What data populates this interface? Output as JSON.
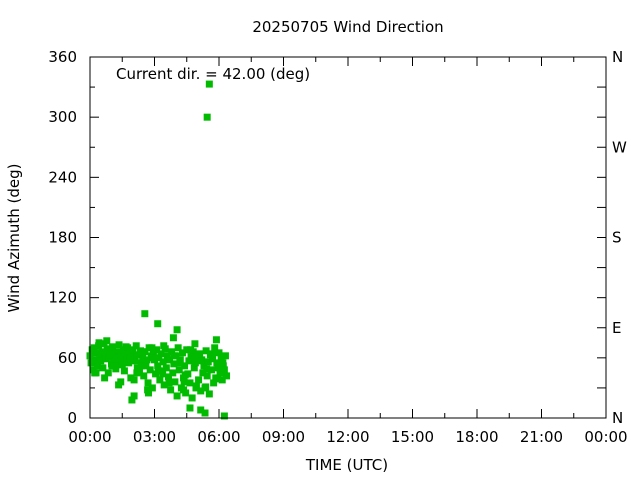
{
  "chart_data": {
    "type": "scatter",
    "title": "20250705 Wind Direction",
    "xlabel": "TIME (UTC)",
    "ylabel": "Wind Azimuth (deg)",
    "annotation": "Current dir. = 42.00 (deg)",
    "xlim": [
      0,
      24
    ],
    "ylim": [
      0,
      360
    ],
    "x_tick_values": [
      0,
      3,
      6,
      9,
      12,
      15,
      18,
      21,
      24
    ],
    "x_tick_labels": [
      "00:00",
      "03:00",
      "06:00",
      "09:00",
      "12:00",
      "15:00",
      "18:00",
      "21:00",
      "00:00"
    ],
    "y_tick_values": [
      0,
      60,
      120,
      180,
      240,
      300,
      360
    ],
    "y_tick_labels": [
      "0",
      "60",
      "120",
      "180",
      "240",
      "300",
      "360"
    ],
    "right_axis_ticks": [
      {
        "value": 360,
        "label": "N"
      },
      {
        "value": 270,
        "label": "W"
      },
      {
        "value": 180,
        "label": "S"
      },
      {
        "value": 90,
        "label": "E"
      },
      {
        "value": 0,
        "label": "N"
      }
    ],
    "grid": false,
    "marker_color": "#00bb00",
    "x_unit": "hours UTC",
    "series": [
      {
        "x": [
          0.0,
          0.05,
          0.1,
          0.15,
          0.2,
          0.25,
          0.3,
          0.35,
          0.4,
          0.45,
          0.5,
          0.55,
          0.6,
          0.65,
          0.7,
          0.75,
          0.8,
          0.85,
          0.9,
          0.95,
          1.0,
          1.05,
          1.1,
          1.15,
          1.2,
          1.25,
          1.3,
          1.35,
          1.4,
          1.45,
          1.5,
          1.55,
          1.6,
          1.65,
          1.7,
          1.75,
          1.8,
          1.85,
          1.9,
          1.95,
          2.0,
          2.05,
          2.1,
          2.15,
          2.2,
          2.25,
          2.3,
          2.35,
          2.4,
          2.45,
          2.5,
          2.55,
          2.6,
          2.65,
          2.7,
          2.75,
          2.8,
          2.85,
          2.9,
          2.95,
          3.0,
          3.05,
          3.1,
          3.15,
          3.2,
          3.25,
          3.3,
          3.35,
          3.4,
          3.45,
          3.5,
          3.55,
          3.6,
          3.65,
          3.7,
          3.75,
          3.8,
          3.85,
          3.9,
          3.95,
          4.0,
          4.05,
          4.1,
          4.15,
          4.2,
          4.25,
          4.3,
          4.35,
          4.4,
          4.45,
          4.5,
          4.55,
          4.6,
          4.65,
          4.7,
          4.75,
          4.8,
          4.85,
          4.9,
          4.95,
          5.0,
          5.05,
          5.1,
          5.15,
          5.2,
          5.25,
          5.3,
          5.35,
          5.4,
          5.45,
          5.5,
          5.55,
          5.6,
          5.65,
          5.7,
          5.75,
          5.8,
          5.85,
          5.9,
          5.95,
          6.0,
          6.05,
          6.1,
          6.15,
          6.2,
          6.25,
          6.3,
          6.35,
          0.12,
          0.42,
          0.68,
          0.93,
          1.18,
          1.43,
          1.68,
          1.93,
          2.18,
          2.43,
          2.68,
          2.93,
          3.18,
          3.43,
          3.68,
          3.93,
          4.18,
          4.43,
          4.68,
          4.93,
          5.18,
          5.43,
          5.68,
          5.93,
          6.18,
          0.22,
          0.78,
          1.33,
          1.88,
          2.38,
          2.88,
          3.38,
          3.88,
          4.38,
          4.88,
          5.38,
          5.88,
          2.55,
          4.05,
          4.35,
          5.45,
          5.55,
          3.15,
          1.95,
          2.05,
          4.65,
          5.15,
          5.35,
          6.25,
          0.28,
          1.02,
          2.72
        ],
        "y": [
          62,
          55,
          68,
          48,
          70,
          58,
          65,
          52,
          72,
          60,
          57,
          66,
          50,
          74,
          63,
          59,
          69,
          45,
          61,
          67,
          54,
          71,
          58,
          64,
          49,
          66,
          60,
          73,
          56,
          62,
          53,
          68,
          47,
          65,
          59,
          70,
          55,
          61,
          40,
          64,
          68,
          38,
          57,
          72,
          50,
          63,
          46,
          67,
          55,
          60,
          42,
          66,
          52,
          58,
          35,
          70,
          48,
          62,
          30,
          65,
          58,
          44,
          68,
          52,
          60,
          38,
          64,
          47,
          56,
          33,
          69,
          50,
          62,
          41,
          58,
          28,
          66,
          45,
          54,
          36,
          62,
          22,
          70,
          48,
          58,
          30,
          65,
          40,
          52,
          25,
          68,
          44,
          57,
          35,
          61,
          20,
          66,
          50,
          55,
          32,
          60,
          38,
          64,
          27,
          58,
          45,
          52,
          30,
          67,
          42,
          56,
          24,
          63,
          48,
          59,
          35,
          70,
          40,
          55,
          50,
          65,
          45,
          60,
          38,
          52,
          48,
          62,
          42,
          58,
          75,
          40,
          63,
          52,
          36,
          71,
          58,
          45,
          66,
          28,
          60,
          47,
          72,
          35,
          62,
          55,
          43,
          68,
          30,
          57,
          49,
          64,
          39,
          55,
          45,
          77,
          33,
          61,
          52,
          70,
          44,
          80,
          36,
          74,
          31,
          78,
          104,
          88,
          28,
          300,
          333,
          94,
          18,
          22,
          10,
          8,
          5,
          2,
          45,
          52,
          25
        ]
      }
    ]
  }
}
